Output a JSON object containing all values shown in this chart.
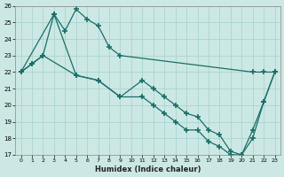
{
  "xlabel": "Humidex (Indice chaleur)",
  "ylabel": "",
  "xlim": [
    -0.5,
    23.5
  ],
  "ylim": [
    17,
    26
  ],
  "yticks": [
    17,
    18,
    19,
    20,
    21,
    22,
    23,
    24,
    25,
    26
  ],
  "xticks": [
    0,
    1,
    2,
    3,
    4,
    5,
    6,
    7,
    8,
    9,
    10,
    11,
    12,
    13,
    14,
    15,
    16,
    17,
    18,
    19,
    20,
    21,
    22,
    23
  ],
  "bg_color": "#cce8e4",
  "grid_major_color": "#aad4d0",
  "grid_minor_color": "#bbdeda",
  "line_color": "#1a6e68",
  "line1": {
    "x": [
      0,
      3,
      4,
      5,
      6,
      7,
      8,
      9,
      21,
      22,
      23
    ],
    "y": [
      22,
      25.5,
      24.5,
      25.8,
      25.2,
      24.8,
      23.5,
      23,
      22,
      22,
      22
    ]
  },
  "line2": {
    "x": [
      0,
      1,
      2,
      3,
      5,
      7,
      9,
      11,
      12,
      13,
      14,
      15,
      16,
      17,
      18,
      19,
      20,
      21,
      22,
      23
    ],
    "y": [
      22,
      22.5,
      23,
      25.5,
      21.8,
      21.5,
      20.5,
      21.5,
      21,
      20.5,
      20,
      19.5,
      19.3,
      18.5,
      18.2,
      17.2,
      17,
      18.5,
      20.2,
      22
    ]
  },
  "line3": {
    "x": [
      0,
      1,
      2,
      5,
      7,
      9,
      11,
      12,
      13,
      14,
      15,
      16,
      17,
      18,
      19,
      20,
      21,
      22,
      23
    ],
    "y": [
      22,
      22.5,
      23,
      21.8,
      21.5,
      20.5,
      20.5,
      20,
      19.5,
      19,
      18.5,
      18.5,
      17.8,
      17.5,
      17,
      17,
      18,
      20.2,
      22
    ]
  }
}
